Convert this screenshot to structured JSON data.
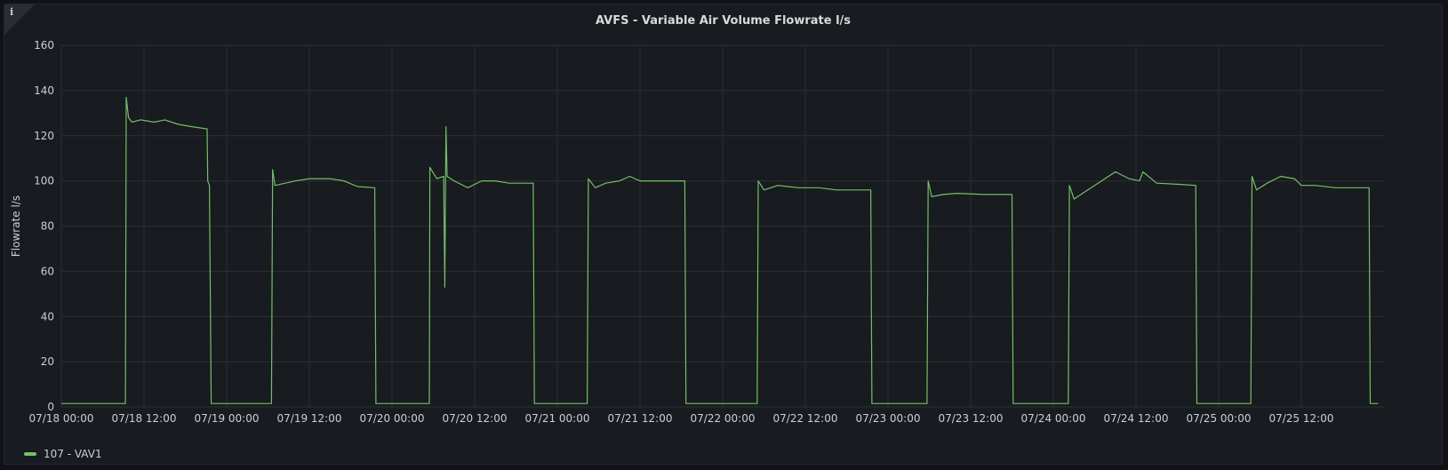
{
  "panel": {
    "title": "AVFS - Variable Air Volume Flowrate l/s",
    "info_icon": "info-icon"
  },
  "colors": {
    "background": "#181b1f",
    "grid": "#2c2f35",
    "text": "#c7d0d9",
    "series": "#73bf69"
  },
  "chart_data": {
    "type": "line",
    "title": "AVFS - Variable Air Volume Flowrate l/s",
    "xlabel": "",
    "ylabel": "Flowrate l/s",
    "ylim": [
      0,
      160
    ],
    "yticks": [
      0,
      20,
      40,
      60,
      80,
      100,
      120,
      140,
      160
    ],
    "xlim": [
      "07/18 00:00",
      "07/25 23:10"
    ],
    "xticks": [
      "07/18 00:00",
      "07/18 12:00",
      "07/19 00:00",
      "07/19 12:00",
      "07/20 00:00",
      "07/20 12:00",
      "07/21 00:00",
      "07/21 12:00",
      "07/22 00:00",
      "07/22 12:00",
      "07/23 00:00",
      "07/23 12:00",
      "07/24 00:00",
      "07/24 12:00",
      "07/25 00:00",
      "07/25 12:00"
    ],
    "grid": true,
    "legend": "bottom-left",
    "series": [
      {
        "name": "107 - VAV1",
        "color": "#73bf69",
        "points": [
          [
            "07/18 00:00",
            1.5
          ],
          [
            "07/18 05:20",
            1.5
          ],
          [
            "07/18 09:18",
            1.5
          ],
          [
            "07/18 09:25",
            137
          ],
          [
            "07/18 09:45",
            128
          ],
          [
            "07/18 10:15",
            126
          ],
          [
            "07/18 11:30",
            127
          ],
          [
            "07/18 13:30",
            126
          ],
          [
            "07/18 15:00",
            127
          ],
          [
            "07/18 17:00",
            125
          ],
          [
            "07/18 19:00",
            124
          ],
          [
            "07/18 21:10",
            123
          ],
          [
            "07/18 21:15",
            100
          ],
          [
            "07/18 21:30",
            98
          ],
          [
            "07/18 21:45",
            1.5
          ],
          [
            "07/19 06:30",
            1.5
          ],
          [
            "07/19 06:40",
            105
          ],
          [
            "07/19 07:00",
            98
          ],
          [
            "07/19 08:30",
            99
          ],
          [
            "07/19 10:00",
            100
          ],
          [
            "07/19 12:00",
            101
          ],
          [
            "07/19 15:00",
            101
          ],
          [
            "07/19 17:00",
            100
          ],
          [
            "07/19 19:00",
            97.5
          ],
          [
            "07/19 21:30",
            97
          ],
          [
            "07/19 21:40",
            1.5
          ],
          [
            "07/20 05:25",
            1.5
          ],
          [
            "07/20 05:30",
            106
          ],
          [
            "07/20 06:30",
            101
          ],
          [
            "07/20 07:30",
            102
          ],
          [
            "07/20 07:40",
            53
          ],
          [
            "07/20 07:50",
            124
          ],
          [
            "07/20 08:00",
            102
          ],
          [
            "07/20 09:00",
            100
          ],
          [
            "07/20 11:00",
            97
          ],
          [
            "07/20 13:00",
            100
          ],
          [
            "07/20 15:00",
            100
          ],
          [
            "07/20 17:00",
            99
          ],
          [
            "07/20 20:30",
            99
          ],
          [
            "07/20 20:40",
            1.5
          ],
          [
            "07/21 04:20",
            1.5
          ],
          [
            "07/21 04:30",
            101
          ],
          [
            "07/21 05:30",
            97
          ],
          [
            "07/21 07:00",
            99
          ],
          [
            "07/21 09:00",
            100
          ],
          [
            "07/21 10:30",
            102
          ],
          [
            "07/21 12:00",
            100
          ],
          [
            "07/21 14:00",
            100
          ],
          [
            "07/21 18:30",
            100
          ],
          [
            "07/21 18:40",
            1.5
          ],
          [
            "07/22 05:00",
            1.5
          ],
          [
            "07/22 05:10",
            100
          ],
          [
            "07/22 06:00",
            96
          ],
          [
            "07/22 08:00",
            98
          ],
          [
            "07/22 11:00",
            97
          ],
          [
            "07/22 14:00",
            97
          ],
          [
            "07/22 16:30",
            96
          ],
          [
            "07/22 21:30",
            96
          ],
          [
            "07/22 21:40",
            1.5
          ],
          [
            "07/23 05:40",
            1.5
          ],
          [
            "07/23 05:50",
            100
          ],
          [
            "07/23 06:20",
            93
          ],
          [
            "07/23 08:00",
            94
          ],
          [
            "07/23 10:00",
            94.5
          ],
          [
            "07/23 14:00",
            94
          ],
          [
            "07/23 18:00",
            94
          ],
          [
            "07/23 18:10",
            1.5
          ],
          [
            "07/24 02:10",
            1.5
          ],
          [
            "07/24 02:20",
            98
          ],
          [
            "07/24 03:00",
            92
          ],
          [
            "07/24 05:00",
            96
          ],
          [
            "07/24 07:00",
            100
          ],
          [
            "07/24 09:00",
            104
          ],
          [
            "07/24 11:00",
            101
          ],
          [
            "07/24 12:30",
            100
          ],
          [
            "07/24 13:00",
            104
          ],
          [
            "07/24 15:00",
            99
          ],
          [
            "07/24 18:00",
            98.5
          ],
          [
            "07/24 20:40",
            98
          ],
          [
            "07/24 20:50",
            1.5
          ],
          [
            "07/25 04:40",
            1.5
          ],
          [
            "07/25 04:50",
            102
          ],
          [
            "07/25 05:30",
            96
          ],
          [
            "07/25 07:00",
            99
          ],
          [
            "07/25 09:00",
            102
          ],
          [
            "07/25 11:00",
            101
          ],
          [
            "07/25 12:00",
            98
          ],
          [
            "07/25 14:00",
            98
          ],
          [
            "07/25 17:00",
            97
          ],
          [
            "07/25 21:50",
            97
          ],
          [
            "07/25 22:00",
            1.5
          ],
          [
            "07/25 23:10",
            1.5
          ]
        ]
      }
    ]
  }
}
